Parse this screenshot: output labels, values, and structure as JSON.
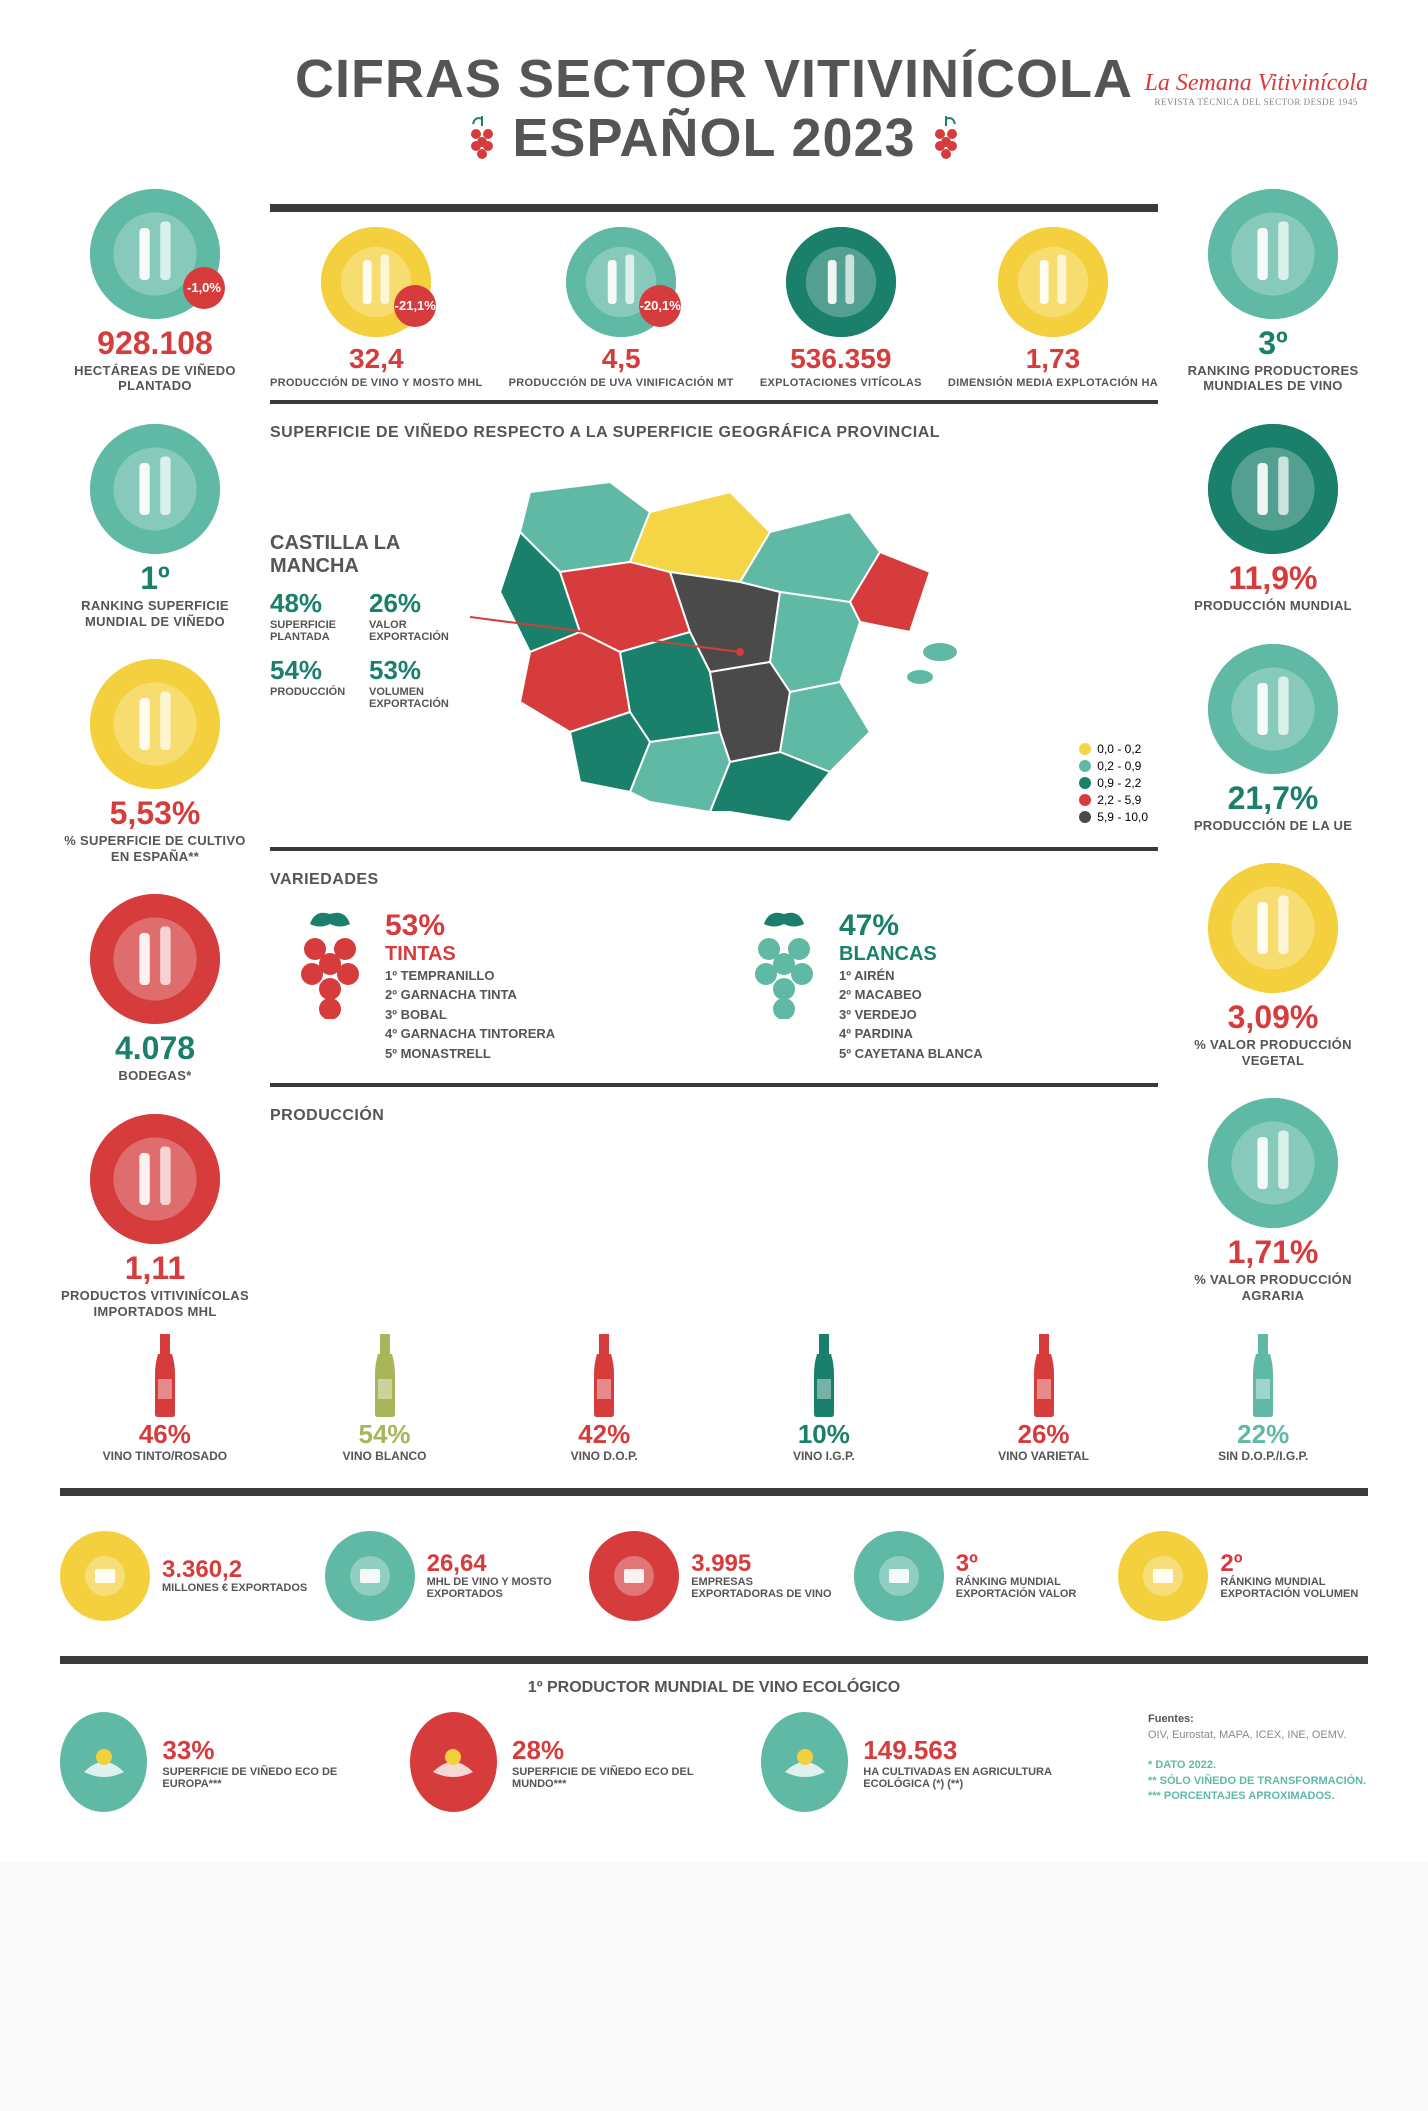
{
  "colors": {
    "teal": "#5fb9a5",
    "teal_dark": "#1a7f6b",
    "red": "#d63c3c",
    "yellow": "#f4d03f",
    "olive": "#aab55a",
    "dark": "#3a3a3a",
    "gray": "#555555"
  },
  "header": {
    "title_line1": "CIFRAS SECTOR VITIVINÍCOLA",
    "title_line2": "ESPAÑOL 2023",
    "logo_main": "La Semana Vitivinícola",
    "logo_sub": "REVISTA TÉCNICA DEL SECTOR DESDE 1945"
  },
  "top_row": [
    {
      "value": "32,4",
      "label": "PRODUCCIÓN DE VINO Y MOSTO MHL",
      "badge": "-21,1%",
      "icon_bg": "#f4d03f",
      "val_color": "#d63c3c"
    },
    {
      "value": "4,5",
      "label": "PRODUCCIÓN DE UVA VINIFICACIÓN MT",
      "badge": "-20,1%",
      "icon_bg": "#5fb9a5",
      "val_color": "#d63c3c"
    },
    {
      "value": "536.359",
      "label": "EXPLOTACIONES VITÍCOLAS",
      "badge": null,
      "icon_bg": "#1a7f6b",
      "val_color": "#d63c3c"
    },
    {
      "value": "1,73",
      "label": "DIMENSIÓN MEDIA EXPLOTACIÓN HA",
      "badge": null,
      "icon_bg": "#f4d03f",
      "val_color": "#d63c3c"
    }
  ],
  "left_col": [
    {
      "value": "928.108",
      "label": "HECTÁREAS DE VIÑEDO PLANTADO",
      "badge": "-1,0%",
      "icon_bg": "#5fb9a5",
      "val_color": "#d63c3c"
    },
    {
      "value": "1º",
      "label": "RANKING SUPERFICIE MUNDIAL DE VIÑEDO",
      "badge": null,
      "icon_bg": "#5fb9a5",
      "val_color": "#1a7f6b"
    },
    {
      "value": "5,53%",
      "label": "% SUPERFICIE DE CULTIVO EN ESPAÑA**",
      "badge": null,
      "icon_bg": "#f4d03f",
      "val_color": "#d63c3c"
    },
    {
      "value": "4.078",
      "label": "BODEGAS*",
      "badge": null,
      "icon_bg": "#d63c3c",
      "val_color": "#1a7f6b"
    },
    {
      "value": "1,11",
      "label": "PRODUCTOS VITIVINÍCOLAS IMPORTADOS MHL",
      "badge": null,
      "icon_bg": "#d63c3c",
      "val_color": "#d63c3c"
    }
  ],
  "right_col": [
    {
      "value": "3º",
      "label": "RANKING PRODUCTORES MUNDIALES DE VINO",
      "badge": null,
      "icon_bg": "#5fb9a5",
      "val_color": "#1a7f6b"
    },
    {
      "value": "11,9%",
      "label": "PRODUCCIÓN MUNDIAL",
      "badge": null,
      "icon_bg": "#1a7f6b",
      "val_color": "#d63c3c"
    },
    {
      "value": "21,7%",
      "label": "PRODUCCIÓN DE LA UE",
      "badge": null,
      "icon_bg": "#5fb9a5",
      "val_color": "#1a7f6b"
    },
    {
      "value": "3,09%",
      "label": "% VALOR PRODUCCIÓN VEGETAL",
      "badge": null,
      "icon_bg": "#f4d03f",
      "val_color": "#d63c3c"
    },
    {
      "value": "1,71%",
      "label": "% VALOR PRODUCCIÓN AGRARIA",
      "badge": null,
      "icon_bg": "#5fb9a5",
      "val_color": "#d63c3c"
    }
  ],
  "map": {
    "section_title": "SUPERFICIE DE VIÑEDO RESPECTO A LA SUPERFICIE GEOGRÁFICA PROVINCIAL",
    "mancha_title": "CASTILLA LA MANCHA",
    "mancha_stats": [
      {
        "v": "48%",
        "l": "SUPERFICIE PLANTADA"
      },
      {
        "v": "26%",
        "l": "VALOR EXPORTACIÓN"
      },
      {
        "v": "54%",
        "l": "PRODUCCIÓN"
      },
      {
        "v": "53%",
        "l": "VOLUMEN EXPORTACIÓN"
      }
    ],
    "legend": [
      {
        "range": "0,0 - 0,2",
        "color": "#f4d546"
      },
      {
        "range": "0,2 - 0,9",
        "color": "#5fb9a5"
      },
      {
        "range": "0,9 - 2,2",
        "color": "#1a7f6b"
      },
      {
        "range": "2,2 - 5,9",
        "color": "#d63c3c"
      },
      {
        "range": "5,9 - 10,0",
        "color": "#4a4a4a"
      }
    ]
  },
  "variedades": {
    "title": "VARIEDADES",
    "tintas": {
      "pct": "53%",
      "name": "TINTAS",
      "color": "#d63c3c",
      "list": [
        "1º TEMPRANILLO",
        "2º GARNACHA TINTA",
        "3º BOBAL",
        "4º GARNACHA TINTORERA",
        "5º MONASTRELL"
      ]
    },
    "blancas": {
      "pct": "47%",
      "name": "BLANCAS",
      "color": "#1a7f6b",
      "list": [
        "1º AIRÉN",
        "2º MACABEO",
        "3º VERDEJO",
        "4º PARDINA",
        "5º CAYETANA BLANCA"
      ]
    }
  },
  "produccion": {
    "title": "PRODUCCIÓN",
    "items": [
      {
        "v": "46%",
        "l": "VINO TINTO/ROSADO",
        "color": "#d63c3c"
      },
      {
        "v": "54%",
        "l": "VINO BLANCO",
        "color": "#aab55a"
      },
      {
        "v": "42%",
        "l": "VINO D.O.P.",
        "color": "#d63c3c"
      },
      {
        "v": "10%",
        "l": "VINO I.G.P.",
        "color": "#1a7f6b"
      },
      {
        "v": "26%",
        "l": "VINO VARIETAL",
        "color": "#d63c3c"
      },
      {
        "v": "22%",
        "l": "SIN D.O.P./I.G.P.",
        "color": "#5fb9a5"
      }
    ]
  },
  "export": [
    {
      "v": "3.360,2",
      "l": "MILLONES € EXPORTADOS",
      "icon_bg": "#f4d03f"
    },
    {
      "v": "26,64",
      "l": "MHL DE VINO Y MOSTO EXPORTADOS",
      "icon_bg": "#5fb9a5"
    },
    {
      "v": "3.995",
      "l": "EMPRESAS EXPORTADORAS DE VINO",
      "icon_bg": "#d63c3c"
    },
    {
      "v": "3º",
      "l": "RÁNKING MUNDIAL EXPORTACIÓN VALOR",
      "icon_bg": "#5fb9a5"
    },
    {
      "v": "2º",
      "l": "RÁNKING MUNDIAL EXPORTACIÓN VOLUMEN",
      "icon_bg": "#f4d03f"
    }
  ],
  "eco": {
    "title": "1º PRODUCTOR MUNDIAL DE VINO ECOLÓGICO",
    "items": [
      {
        "v": "33%",
        "l": "SUPERFICIE DE VIÑEDO ECO DE EUROPA***",
        "icon_bg": "#5fb9a5"
      },
      {
        "v": "28%",
        "l": "SUPERFICIE DE VIÑEDO ECO DEL MUNDO***",
        "icon_bg": "#d63c3c"
      },
      {
        "v": "149.563",
        "l": "HA CULTIVADAS EN AGRICULTURA ECOLÓGICA (*) (**)",
        "icon_bg": "#5fb9a5"
      }
    ]
  },
  "footnotes": {
    "sources_label": "Fuentes:",
    "sources": "OIV, Eurostat, MAPA, ICEX, INE, OEMV.",
    "n1": "*   DATO 2022.",
    "n2": "**  SÓLO VIÑEDO DE TRANSFORMACIÓN.",
    "n3": "*** PORCENTAJES APROXIMADOS."
  }
}
